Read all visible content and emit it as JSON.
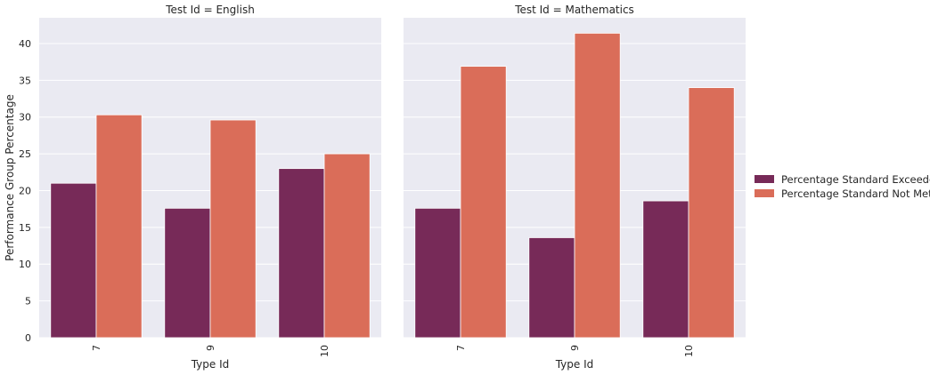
{
  "chart_data": {
    "type": "bar",
    "ylabel": "Performance Group Percentage",
    "ylim": [
      0,
      43.5
    ],
    "yticks": [
      0,
      5,
      10,
      15,
      20,
      25,
      30,
      35,
      40
    ],
    "grid": true,
    "legend_position": "right",
    "categories": [
      "7",
      "9",
      "10"
    ],
    "series_colors": [
      "#772a58",
      "#da6d59"
    ],
    "panels": [
      {
        "title": "Test Id = English",
        "xlabel": "Type Id",
        "series": [
          {
            "name": "Percentage Standard Exceeded",
            "values": [
              21.0,
              17.6,
              23.0
            ]
          },
          {
            "name": "Percentage Standard Not Met",
            "values": [
              30.3,
              29.6,
              25.0
            ]
          }
        ]
      },
      {
        "title": "Test Id = Mathematics",
        "xlabel": "Type Id",
        "series": [
          {
            "name": "Percentage Standard Exceeded",
            "values": [
              17.6,
              13.6,
              18.6
            ]
          },
          {
            "name": "Percentage Standard Not Met",
            "values": [
              36.9,
              41.4,
              34.0
            ]
          }
        ]
      }
    ]
  }
}
